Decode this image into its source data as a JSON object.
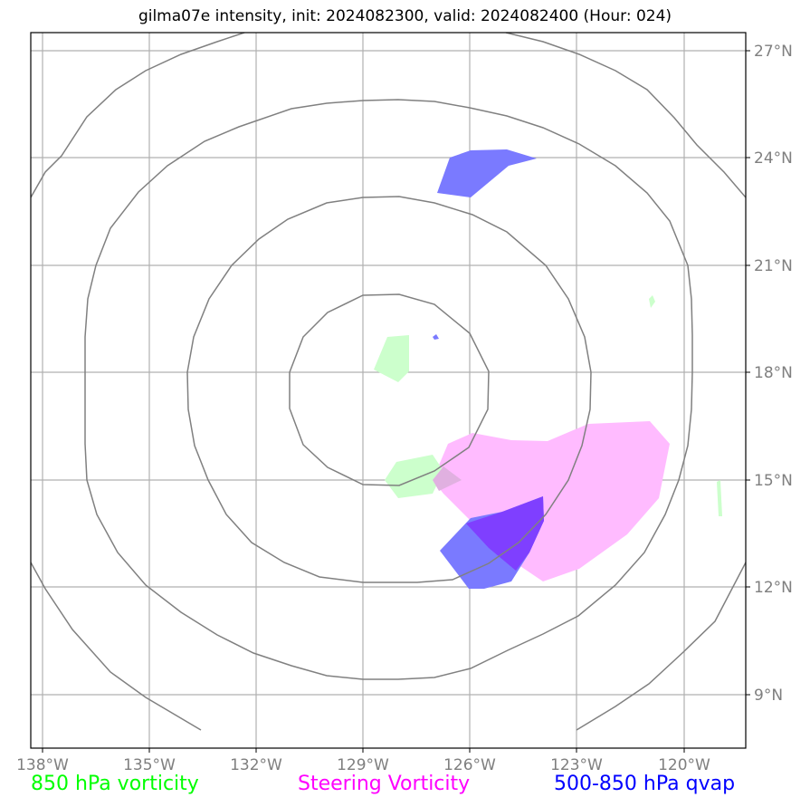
{
  "title": "gilma07e intensity, init: 2024082300, valid: 2024082400 (Hour: 024)",
  "axes": {
    "longitude_labels": [
      "138°W",
      "135°W",
      "132°W",
      "129°W",
      "126°W",
      "123°W",
      "120°W"
    ],
    "latitude_labels": [
      "27°N",
      "24°N",
      "21°N",
      "18°N",
      "15°N",
      "12°N",
      "9°N"
    ]
  },
  "legend": {
    "vorticity_850": {
      "label": "850 hPa vorticity",
      "color": "#00ff00"
    },
    "steering_vorticity": {
      "label": "Steering Vorticity",
      "color": "#ff00ff"
    },
    "qvap_500_850": {
      "label": "500-850 hPa qvap",
      "color": "#0000ff"
    }
  },
  "colors": {
    "range_rings": "#808080",
    "gridlines": "#b0b0b0",
    "vorticity_fill": "#ccffcc",
    "steering_fill": "#ffbbff",
    "qvap_fill": "#7a7aff",
    "overlap_fill": "#7f3fff"
  }
}
